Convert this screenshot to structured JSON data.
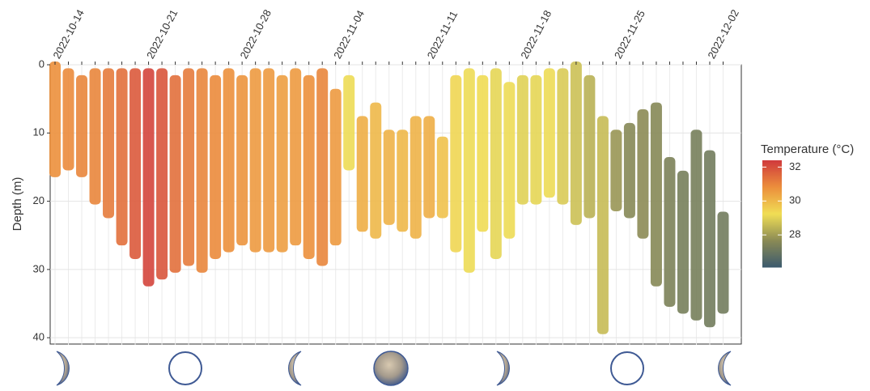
{
  "chart_data": {
    "type": "depth-range",
    "y_label": "Depth (m)",
    "legend_title": "Temperature (°C)",
    "x": [
      "2022-10-14",
      "2022-10-15",
      "2022-10-16",
      "2022-10-17",
      "2022-10-18",
      "2022-10-19",
      "2022-10-20",
      "2022-10-21",
      "2022-10-22",
      "2022-10-23",
      "2022-10-24",
      "2022-10-25",
      "2022-10-26",
      "2022-10-27",
      "2022-10-28",
      "2022-10-29",
      "2022-10-30",
      "2022-10-31",
      "2022-11-01",
      "2022-11-02",
      "2022-11-03",
      "2022-11-04",
      "2022-11-05",
      "2022-11-06",
      "2022-11-07",
      "2022-11-08",
      "2022-11-09",
      "2022-11-10",
      "2022-11-11",
      "2022-11-12",
      "2022-11-13",
      "2022-11-14",
      "2022-11-15",
      "2022-11-16",
      "2022-11-17",
      "2022-11-18",
      "2022-11-19",
      "2022-11-20",
      "2022-11-21",
      "2022-11-22",
      "2022-11-23",
      "2022-11-24",
      "2022-11-25",
      "2022-11-26",
      "2022-11-27",
      "2022-11-28",
      "2022-11-29",
      "2022-11-30",
      "2022-12-01",
      "2022-12-02",
      "2022-12-03"
    ],
    "depth_min": [
      0,
      1,
      2,
      1,
      1,
      1,
      1,
      1,
      1,
      2,
      1,
      1,
      2,
      1,
      2,
      1,
      1,
      2,
      1,
      2,
      1,
      4,
      2,
      8,
      6,
      10,
      10,
      8,
      8,
      11,
      2,
      1,
      2,
      1,
      3,
      2,
      2,
      1,
      1,
      0,
      2,
      8,
      10,
      9,
      7,
      6,
      14,
      16,
      10,
      13,
      22
    ],
    "depth_max": [
      16,
      15,
      16,
      20,
      22,
      26,
      28,
      32,
      31,
      30,
      29,
      30,
      28,
      27,
      26,
      27,
      27,
      27,
      26,
      28,
      29,
      26,
      15,
      24,
      25,
      23,
      24,
      25,
      22,
      22,
      27,
      30,
      24,
      28,
      25,
      20,
      20,
      19,
      20,
      23,
      22,
      39,
      21,
      22,
      25,
      32,
      35,
      36,
      37,
      38,
      36
    ],
    "temperature": [
      30.8,
      30.9,
      31.0,
      31.0,
      31.2,
      31.4,
      31.8,
      32.2,
      31.9,
      31.4,
      31.2,
      31.0,
      30.9,
      30.8,
      30.7,
      30.6,
      30.6,
      30.5,
      30.6,
      30.8,
      31.0,
      30.6,
      29.2,
      30.2,
      30.0,
      30.1,
      30.0,
      30.1,
      30.2,
      29.8,
      29.4,
      29.2,
      29.3,
      29.1,
      29.2,
      29.0,
      29.1,
      29.2,
      28.9,
      28.7,
      28.4,
      28.6,
      27.9,
      27.6,
      27.7,
      27.6,
      27.4,
      27.3,
      27.3,
      27.2,
      27.2
    ],
    "xlim": [
      "2022-10-14",
      "2022-12-04"
    ],
    "xticks": [
      "2022-10-14",
      "2022-10-21",
      "2022-10-28",
      "2022-11-04",
      "2022-11-11",
      "2022-11-18",
      "2022-11-25",
      "2022-12-02"
    ],
    "ylim": [
      0,
      41
    ],
    "yticks": [
      0,
      10,
      20,
      30,
      40
    ],
    "y_reversed": true,
    "colorlim": [
      26.1,
      32.4
    ],
    "colorticks": [
      28,
      30,
      32
    ],
    "colors": [
      "#3b5a6e",
      "#8a8a55",
      "#f0de55",
      "#ec8f3c",
      "#d03a3c"
    ],
    "grid": true
  }
}
